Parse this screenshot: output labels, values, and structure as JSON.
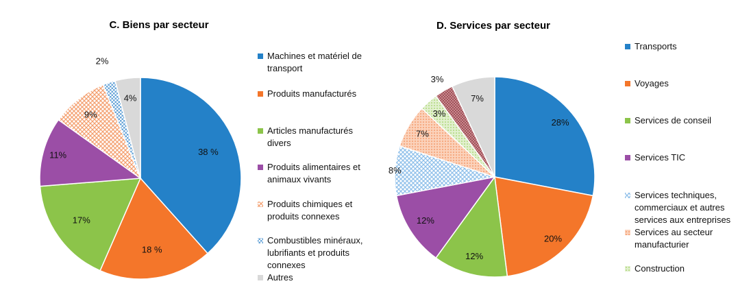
{
  "chart_data": [
    {
      "type": "pie",
      "title": "C. Biens par secteur",
      "series": [
        {
          "name": "Machines et matériel de transport",
          "value": 38,
          "label": "38 %",
          "color": "#2481c8",
          "pattern": null
        },
        {
          "name": "Produits manufacturés",
          "value": 18,
          "label": "18 %",
          "color": "#f4762a",
          "pattern": null
        },
        {
          "name": "Articles manufacturés divers",
          "value": 17,
          "label": "17%",
          "color": "#8cc44a",
          "pattern": null
        },
        {
          "name": "Produits alimentaires et animaux vivants",
          "value": 11,
          "label": "11%",
          "color": "#9b4ea6",
          "pattern": null
        },
        {
          "name": "Produits chimiques et produits connexes",
          "value": 9,
          "label": "9%",
          "color": "#f4a070",
          "pattern": "cross"
        },
        {
          "name": "Combustibles minéraux, lubrifiants et produits connexes",
          "value": 2,
          "label": "2%",
          "color": "#6aa6d8",
          "pattern": "check"
        },
        {
          "name": "Autres",
          "value": 4,
          "label": "4%",
          "color": "#d9d9d9",
          "pattern": null
        }
      ]
    },
    {
      "type": "pie",
      "title": "D. Services par secteur",
      "series": [
        {
          "name": "Transports",
          "value": 28,
          "label": "28%",
          "color": "#2481c8",
          "pattern": null
        },
        {
          "name": "Voyages",
          "value": 20,
          "label": "20%",
          "color": "#f4762a",
          "pattern": null
        },
        {
          "name": "Services de conseil",
          "value": 12,
          "label": "12%",
          "color": "#8cc44a",
          "pattern": null
        },
        {
          "name": "Services TIC",
          "value": 12,
          "label": "12%",
          "color": "#9b4ea6",
          "pattern": null
        },
        {
          "name": "Services techniques, commerciaux et autres services aux entreprises",
          "value": 8,
          "label": "8%",
          "color": "#8fc0ea",
          "pattern": "cross"
        },
        {
          "name": "Services au secteur manufacturier",
          "value": 7,
          "label": "7%",
          "color": "#f6a57a",
          "pattern": "dots"
        },
        {
          "name": "Construction",
          "value": 3,
          "label": "3%",
          "color": "#b8dc8a",
          "pattern": "dots"
        },
        {
          "name": "",
          "value": 3,
          "label": "3%",
          "color": "#a0525a",
          "pattern": "check"
        },
        {
          "name": "",
          "value": 7,
          "label": "7%",
          "color": "#d9d9d9",
          "pattern": null
        }
      ]
    }
  ],
  "legend_c": [
    {
      "line1": "Machines et matériel de",
      "line2": "transport"
    },
    {
      "line1": "Produits manufacturés"
    },
    {
      "line1": "Articles manufacturés",
      "line2": "divers"
    },
    {
      "line1": "Produits alimentaires et",
      "line2": "animaux vivants"
    },
    {
      "line1": "Produits chimiques et",
      "line2": "produits connexes"
    },
    {
      "line1": "Combustibles minéraux,",
      "line2": "lubrifiants et produits",
      "line3": "connexes"
    },
    {
      "line1": "Autres"
    }
  ],
  "legend_d": [
    {
      "line1": "Transports"
    },
    {
      "line1": "Voyages"
    },
    {
      "line1": "Services de conseil"
    },
    {
      "line1": "Services TIC"
    },
    {
      "line1": "Services techniques,",
      "line2": "commerciaux et autres",
      "line3": "services aux entreprises"
    },
    {
      "line1": "Services au secteur",
      "line2": "manufacturier"
    },
    {
      "line1": "Construction"
    }
  ]
}
